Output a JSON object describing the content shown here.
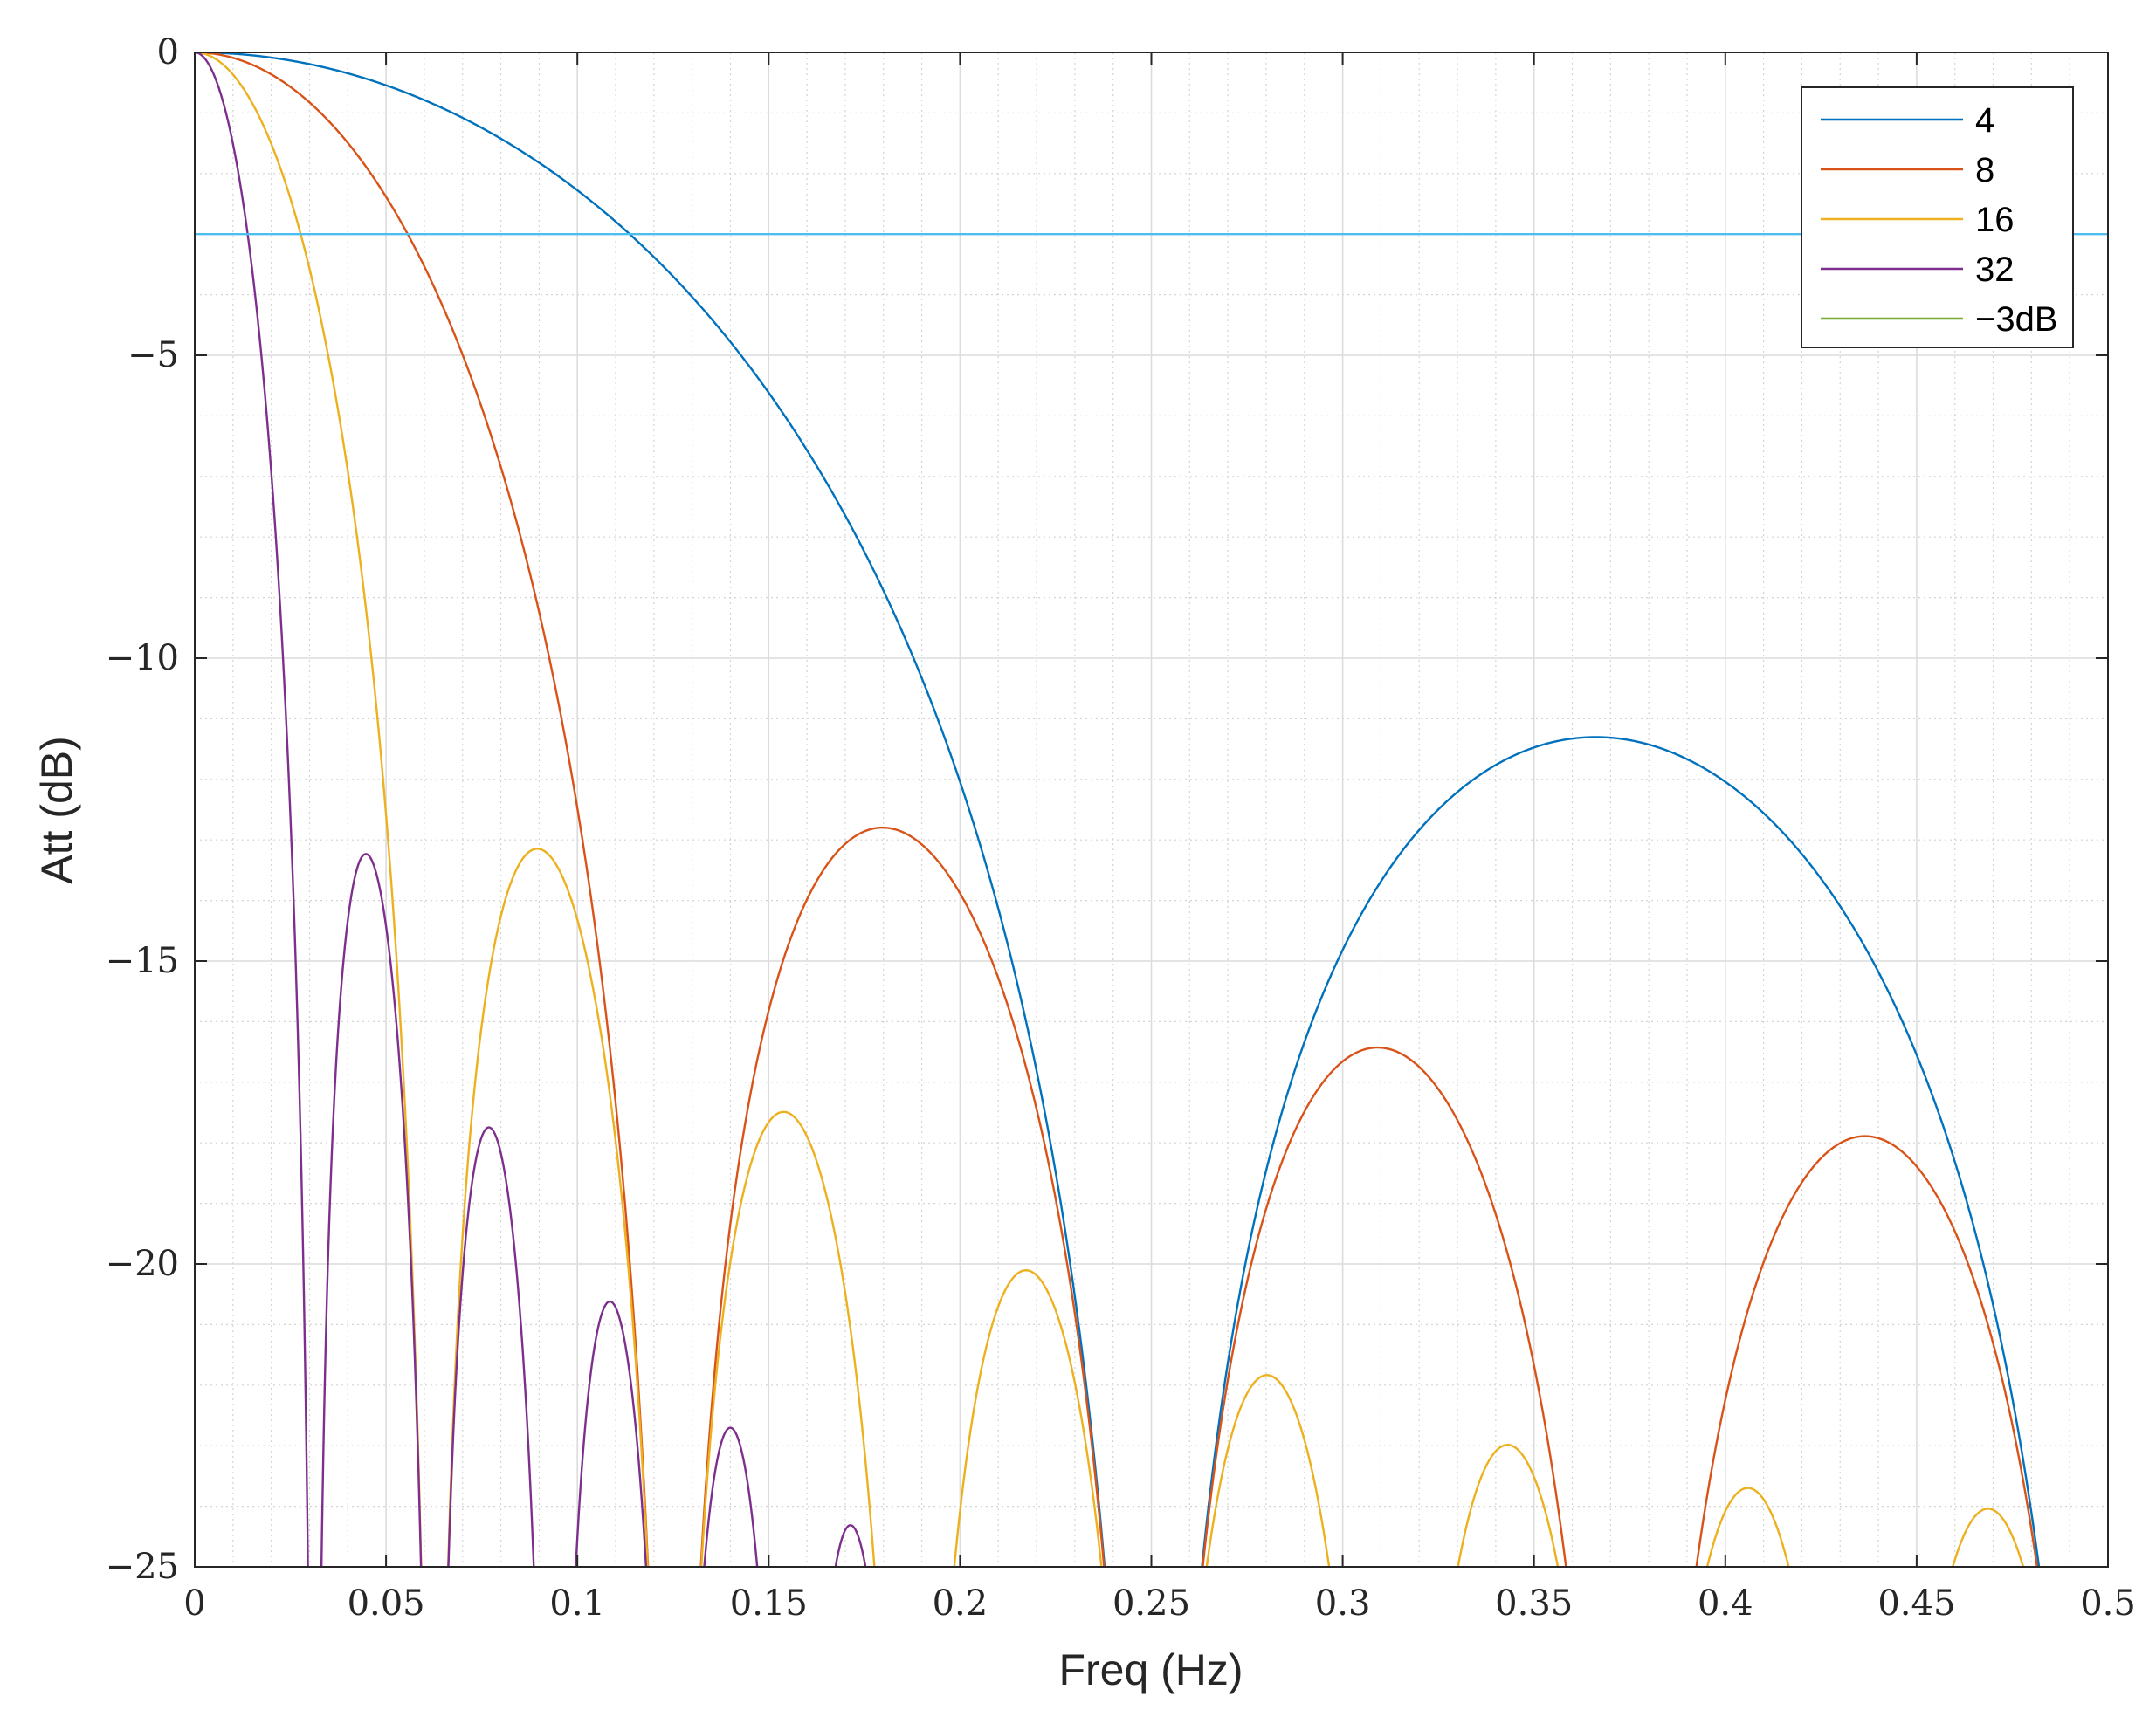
{
  "chart_data": {
    "type": "line",
    "title": "",
    "xlabel": "Freq (Hz)",
    "ylabel": "Att (dB)",
    "xlim": [
      0,
      0.5
    ],
    "ylim": [
      -25,
      0
    ],
    "xticks": [
      0,
      0.05,
      0.1,
      0.15,
      0.2,
      0.25,
      0.3,
      0.35,
      0.4,
      0.45,
      0.5
    ],
    "xtick_labels": [
      "0",
      "0.05",
      "0.1",
      "0.15",
      "0.2",
      "0.25",
      "0.3",
      "0.35",
      "0.4",
      "0.45",
      "0.5"
    ],
    "yticks": [
      0,
      -5,
      -10,
      -15,
      -20,
      -25
    ],
    "ytick_labels": [
      "0",
      "−5",
      "−10",
      "−15",
      "−20",
      "−25"
    ],
    "grid": true,
    "minor_grid": true,
    "legend_position": "top-right",
    "series": [
      {
        "name": "4",
        "color": "#0072BD",
        "function": "moving_average_magnitude_db",
        "N": 4
      },
      {
        "name": "8",
        "color": "#D95319",
        "function": "moving_average_magnitude_db",
        "N": 8
      },
      {
        "name": "16",
        "color": "#EDB120",
        "function": "moving_average_magnitude_db",
        "N": 16
      },
      {
        "name": "32",
        "color": "#7E2F8E",
        "function": "moving_average_magnitude_db",
        "N": 32
      },
      {
        "name": "−3dB",
        "color": "#77AC30",
        "drawn_color": "#4DBEEE",
        "function": "constant",
        "value": -3
      }
    ]
  }
}
